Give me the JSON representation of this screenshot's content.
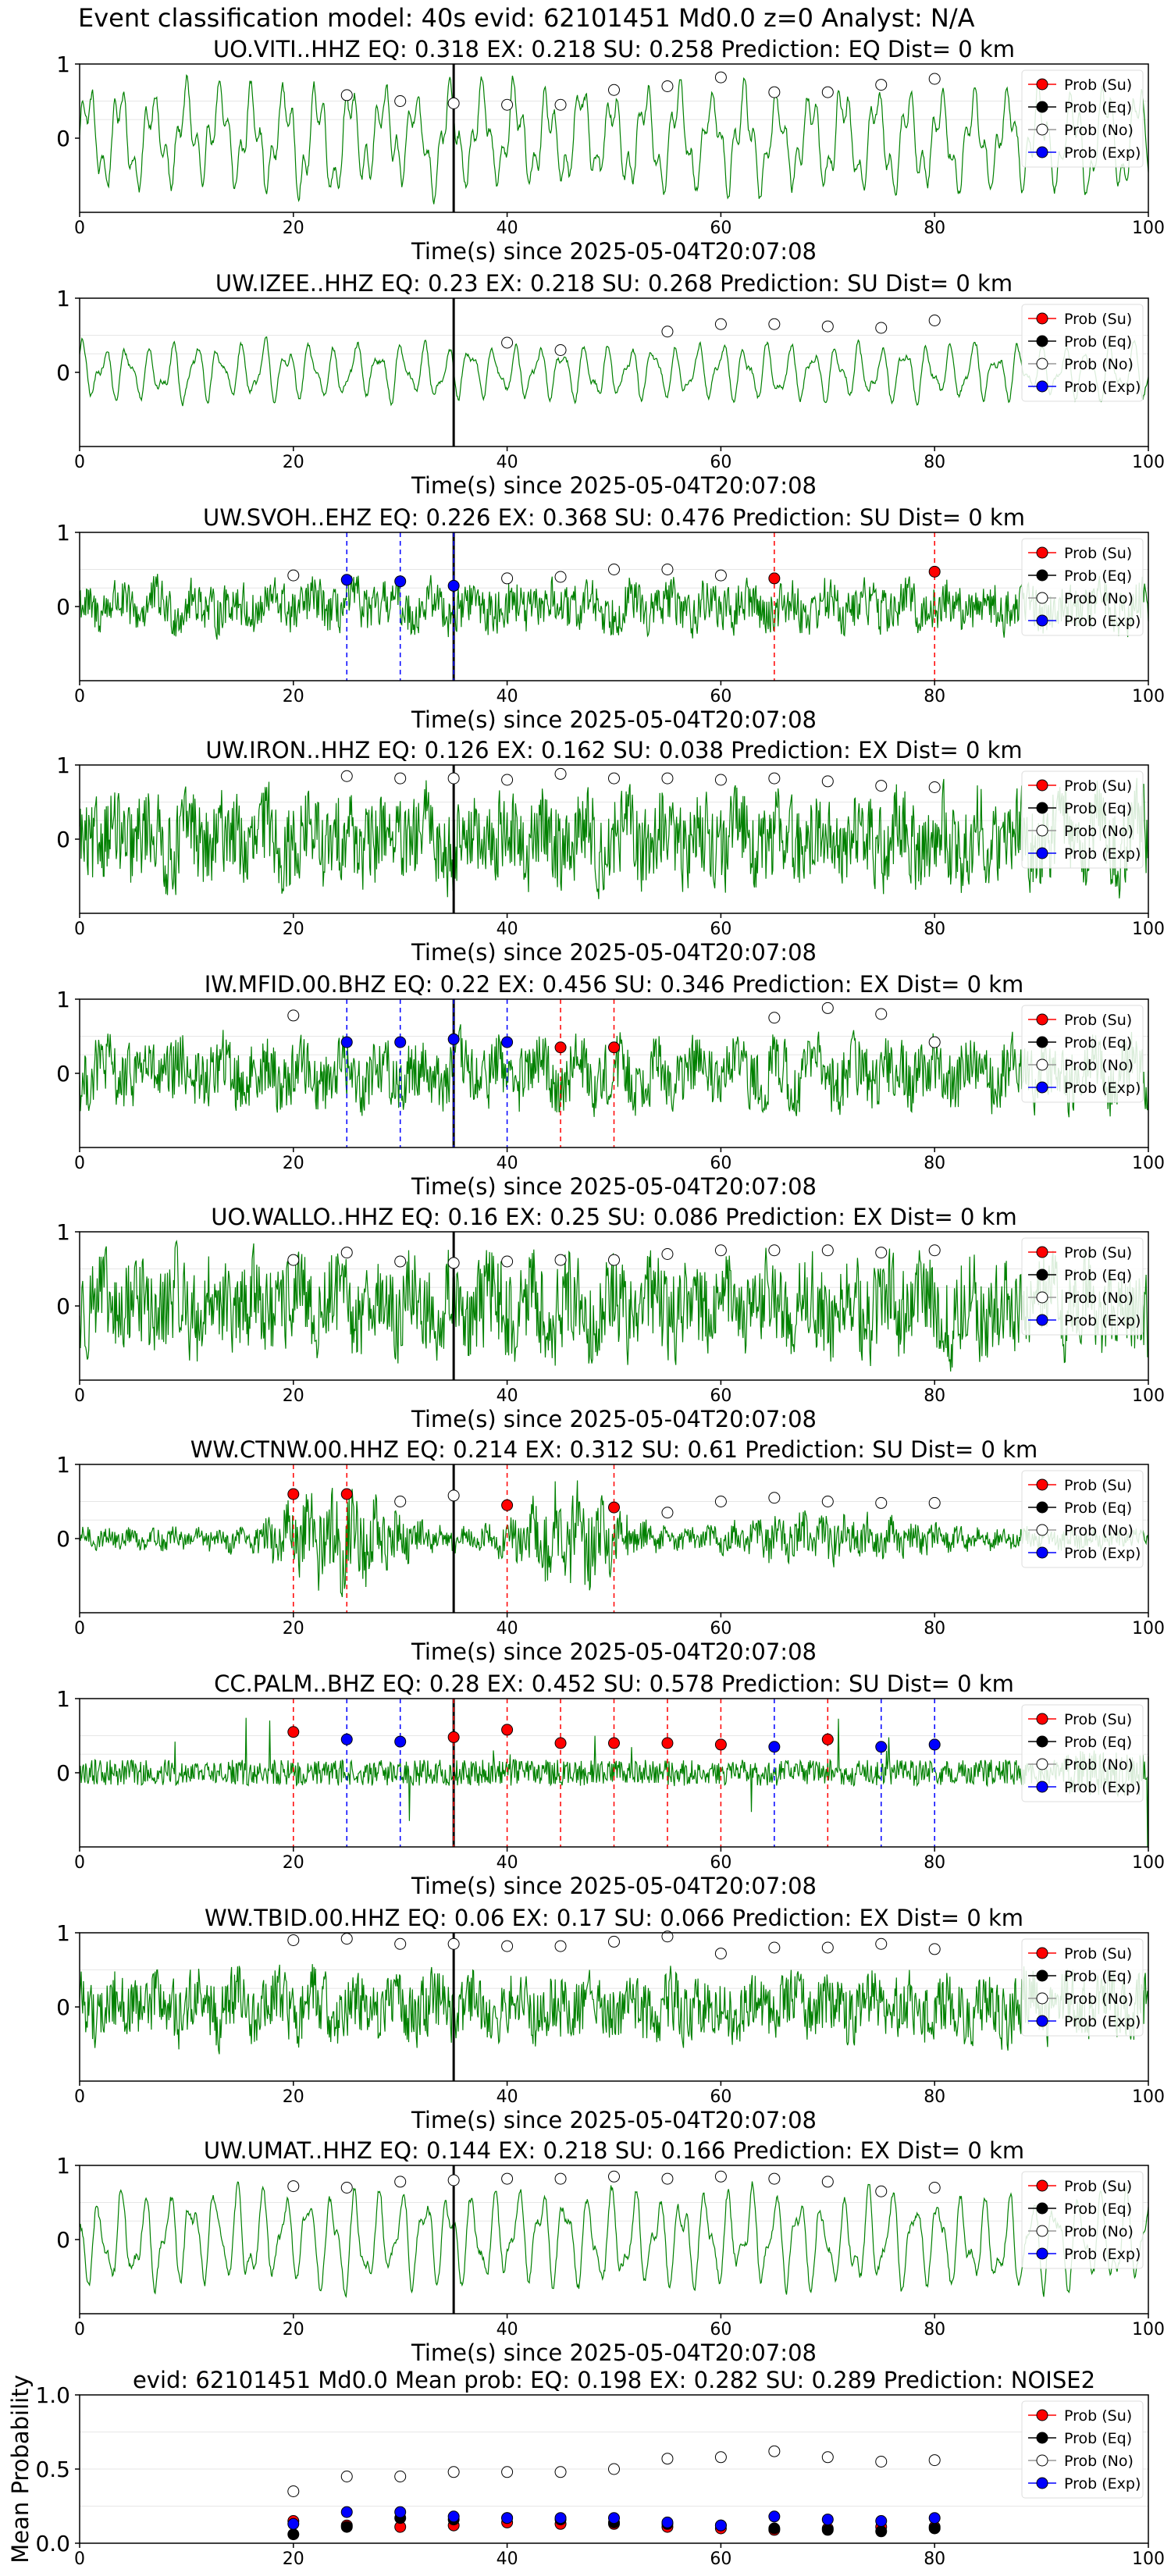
{
  "figure": {
    "title": "Event classification model: 40s evid: 62101451 Md0.0 z=0 Analyst: N/A",
    "xlabel": "Time(s) since 2025-05-04T20:07:08",
    "x_ticks": [
      "0",
      "20",
      "40",
      "60",
      "80",
      "100"
    ],
    "trace_y_ticks": [
      "1",
      "0"
    ],
    "legend": [
      "Prob (Su)",
      "Prob (Eq)",
      "Prob (No)",
      "Prob (Exp)"
    ],
    "colors": {
      "waveform": "#008000",
      "su": "#ff0000",
      "eq": "#000000",
      "no": "#ffffff",
      "exp": "#0000ff",
      "origin_line": "#000000",
      "grid": "#e6e6e6"
    }
  },
  "chart_data": [
    {
      "type": "line",
      "title": "UO.VITI..HHZ   EQ: 0.318  EX: 0.218  SU: 0.258   Prediction: EQ    Dist= 0 km",
      "xlabel": "Time(s) since 2025-05-04T20:07:08",
      "xlim": [
        0,
        100
      ],
      "ylim": [
        -1,
        1
      ],
      "origin_time": 35,
      "waveform_style": "oscillatory",
      "amplitude": 0.85,
      "no_probs": [
        {
          "x": 25,
          "y": 0.58
        },
        {
          "x": 30,
          "y": 0.5
        },
        {
          "x": 35,
          "y": 0.47
        },
        {
          "x": 40,
          "y": 0.45
        },
        {
          "x": 45,
          "y": 0.45
        },
        {
          "x": 50,
          "y": 0.65
        },
        {
          "x": 55,
          "y": 0.7
        },
        {
          "x": 60,
          "y": 0.82
        },
        {
          "x": 65,
          "y": 0.62
        },
        {
          "x": 70,
          "y": 0.62
        },
        {
          "x": 75,
          "y": 0.72
        },
        {
          "x": 80,
          "y": 0.8
        }
      ],
      "su_probs": [],
      "exp_probs": []
    },
    {
      "type": "line",
      "title": "UW.IZEE..HHZ   EQ: 0.23  EX: 0.218  SU: 0.268   Prediction: SU    Dist= 0 km",
      "xlabel": "Time(s) since 2025-05-04T20:07:08",
      "xlim": [
        0,
        100
      ],
      "ylim": [
        -1,
        1
      ],
      "origin_time": 35,
      "waveform_style": "oscillatory",
      "amplitude": 0.45,
      "no_probs": [
        {
          "x": 40,
          "y": 0.4
        },
        {
          "x": 45,
          "y": 0.3
        },
        {
          "x": 55,
          "y": 0.55
        },
        {
          "x": 60,
          "y": 0.65
        },
        {
          "x": 65,
          "y": 0.65
        },
        {
          "x": 70,
          "y": 0.62
        },
        {
          "x": 75,
          "y": 0.6
        },
        {
          "x": 80,
          "y": 0.7
        }
      ],
      "su_probs": [],
      "exp_probs": []
    },
    {
      "type": "line",
      "title": "UW.SVOH..EHZ   EQ: 0.226  EX: 0.368  SU: 0.476   Prediction: SU    Dist= 0 km",
      "xlabel": "Time(s) since 2025-05-04T20:07:08",
      "xlim": [
        0,
        100
      ],
      "ylim": [
        -1,
        1
      ],
      "origin_time": 35,
      "waveform_style": "noisy",
      "amplitude": 0.4,
      "no_probs": [
        {
          "x": 20,
          "y": 0.42
        },
        {
          "x": 40,
          "y": 0.38
        },
        {
          "x": 45,
          "y": 0.4
        },
        {
          "x": 50,
          "y": 0.5
        },
        {
          "x": 55,
          "y": 0.5
        },
        {
          "x": 60,
          "y": 0.42
        }
      ],
      "su_probs": [
        {
          "x": 65,
          "y": 0.38
        },
        {
          "x": 80,
          "y": 0.47
        }
      ],
      "exp_probs": [
        {
          "x": 25,
          "y": 0.36
        },
        {
          "x": 30,
          "y": 0.34
        },
        {
          "x": 35,
          "y": 0.28
        }
      ]
    },
    {
      "type": "line",
      "title": "UW.IRON..HHZ   EQ: 0.126  EX: 0.162  SU: 0.038   Prediction: EX    Dist= 0 km",
      "xlabel": "Time(s) since 2025-05-04T20:07:08",
      "xlim": [
        0,
        100
      ],
      "ylim": [
        -1,
        1
      ],
      "origin_time": 35,
      "waveform_style": "noisy",
      "amplitude": 0.75,
      "no_probs": [
        {
          "x": 25,
          "y": 0.85
        },
        {
          "x": 30,
          "y": 0.82
        },
        {
          "x": 35,
          "y": 0.82
        },
        {
          "x": 40,
          "y": 0.8
        },
        {
          "x": 45,
          "y": 0.88
        },
        {
          "x": 50,
          "y": 0.82
        },
        {
          "x": 55,
          "y": 0.82
        },
        {
          "x": 60,
          "y": 0.8
        },
        {
          "x": 65,
          "y": 0.82
        },
        {
          "x": 70,
          "y": 0.78
        },
        {
          "x": 75,
          "y": 0.72
        },
        {
          "x": 80,
          "y": 0.7
        }
      ],
      "su_probs": [],
      "exp_probs": []
    },
    {
      "type": "line",
      "title": "IW.MFID.00.BHZ   EQ: 0.22  EX: 0.456  SU: 0.346   Prediction: EX    Dist= 0 km",
      "xlabel": "Time(s) since 2025-05-04T20:07:08",
      "xlim": [
        0,
        100
      ],
      "ylim": [
        -1,
        1
      ],
      "origin_time": 35,
      "waveform_style": "noisy",
      "amplitude": 0.55,
      "no_probs": [
        {
          "x": 20,
          "y": 0.78
        },
        {
          "x": 65,
          "y": 0.75
        },
        {
          "x": 70,
          "y": 0.88
        },
        {
          "x": 75,
          "y": 0.8
        },
        {
          "x": 80,
          "y": 0.42
        }
      ],
      "su_probs": [
        {
          "x": 45,
          "y": 0.35
        },
        {
          "x": 50,
          "y": 0.35
        }
      ],
      "exp_probs": [
        {
          "x": 25,
          "y": 0.42
        },
        {
          "x": 30,
          "y": 0.42
        },
        {
          "x": 35,
          "y": 0.46
        },
        {
          "x": 40,
          "y": 0.42
        }
      ]
    },
    {
      "type": "line",
      "title": "UO.WALLO..HHZ   EQ: 0.16  EX: 0.25  SU: 0.086   Prediction: EX    Dist= 0 km",
      "xlabel": "Time(s) since 2025-05-04T20:07:08",
      "xlim": [
        0,
        100
      ],
      "ylim": [
        -1,
        1
      ],
      "origin_time": 35,
      "waveform_style": "noisy",
      "amplitude": 0.8,
      "no_probs": [
        {
          "x": 20,
          "y": 0.62
        },
        {
          "x": 25,
          "y": 0.72
        },
        {
          "x": 30,
          "y": 0.6
        },
        {
          "x": 35,
          "y": 0.58
        },
        {
          "x": 40,
          "y": 0.6
        },
        {
          "x": 45,
          "y": 0.62
        },
        {
          "x": 50,
          "y": 0.62
        },
        {
          "x": 55,
          "y": 0.7
        },
        {
          "x": 60,
          "y": 0.75
        },
        {
          "x": 65,
          "y": 0.75
        },
        {
          "x": 70,
          "y": 0.75
        },
        {
          "x": 75,
          "y": 0.72
        },
        {
          "x": 80,
          "y": 0.75
        }
      ],
      "su_probs": [],
      "exp_probs": []
    },
    {
      "type": "line",
      "title": "WW.CTNW.00.HHZ   EQ: 0.214  EX: 0.312  SU: 0.61   Prediction: SU    Dist= 0 km",
      "xlabel": "Time(s) since 2025-05-04T20:07:08",
      "xlim": [
        0,
        100
      ],
      "ylim": [
        -1,
        1
      ],
      "origin_time": 35,
      "waveform_style": "bursts",
      "amplitude": 0.7,
      "no_probs": [
        {
          "x": 30,
          "y": 0.5
        },
        {
          "x": 35,
          "y": 0.58
        },
        {
          "x": 55,
          "y": 0.35
        },
        {
          "x": 60,
          "y": 0.5
        },
        {
          "x": 65,
          "y": 0.55
        },
        {
          "x": 70,
          "y": 0.5
        },
        {
          "x": 75,
          "y": 0.48
        },
        {
          "x": 80,
          "y": 0.48
        }
      ],
      "su_probs": [
        {
          "x": 20,
          "y": 0.6
        },
        {
          "x": 25,
          "y": 0.6
        },
        {
          "x": 40,
          "y": 0.45
        },
        {
          "x": 50,
          "y": 0.42
        }
      ],
      "exp_probs": []
    },
    {
      "type": "line",
      "title": "CC.PALM..BHZ   EQ: 0.28  EX: 0.452  SU: 0.578   Prediction: SU    Dist= 0 km",
      "xlabel": "Time(s) since 2025-05-04T20:07:08",
      "xlim": [
        0,
        100
      ],
      "ylim": [
        -1,
        1
      ],
      "origin_time": 35,
      "waveform_style": "spiky",
      "amplitude": 0.5,
      "no_probs": [],
      "su_probs": [
        {
          "x": 20,
          "y": 0.55
        },
        {
          "x": 35,
          "y": 0.48
        },
        {
          "x": 40,
          "y": 0.58
        },
        {
          "x": 45,
          "y": 0.4
        },
        {
          "x": 50,
          "y": 0.4
        },
        {
          "x": 55,
          "y": 0.4
        },
        {
          "x": 60,
          "y": 0.38
        },
        {
          "x": 70,
          "y": 0.45
        }
      ],
      "exp_probs": [
        {
          "x": 25,
          "y": 0.45
        },
        {
          "x": 30,
          "y": 0.42
        },
        {
          "x": 65,
          "y": 0.35
        },
        {
          "x": 75,
          "y": 0.35
        },
        {
          "x": 80,
          "y": 0.38
        }
      ]
    },
    {
      "type": "line",
      "title": "WW.TBID.00.HHZ   EQ: 0.06  EX: 0.17  SU: 0.066   Prediction: EX    Dist= 0 km",
      "xlabel": "Time(s) since 2025-05-04T20:07:08",
      "xlim": [
        0,
        100
      ],
      "ylim": [
        -1,
        1
      ],
      "origin_time": 35,
      "waveform_style": "noisy",
      "amplitude": 0.55,
      "no_probs": [
        {
          "x": 20,
          "y": 0.9
        },
        {
          "x": 25,
          "y": 0.92
        },
        {
          "x": 30,
          "y": 0.85
        },
        {
          "x": 35,
          "y": 0.85
        },
        {
          "x": 40,
          "y": 0.82
        },
        {
          "x": 45,
          "y": 0.82
        },
        {
          "x": 50,
          "y": 0.88
        },
        {
          "x": 55,
          "y": 0.95
        },
        {
          "x": 60,
          "y": 0.72
        },
        {
          "x": 65,
          "y": 0.8
        },
        {
          "x": 70,
          "y": 0.8
        },
        {
          "x": 75,
          "y": 0.85
        },
        {
          "x": 80,
          "y": 0.78
        }
      ],
      "su_probs": [],
      "exp_probs": []
    },
    {
      "type": "line",
      "title": "UW.UMAT..HHZ   EQ: 0.144  EX: 0.218  SU: 0.166   Prediction: EX    Dist= 0 km",
      "xlabel": "Time(s) since 2025-05-04T20:07:08",
      "xlim": [
        0,
        100
      ],
      "ylim": [
        -1,
        1
      ],
      "origin_time": 35,
      "waveform_style": "oscillatory",
      "amplitude": 0.75,
      "no_probs": [
        {
          "x": 20,
          "y": 0.72
        },
        {
          "x": 25,
          "y": 0.7
        },
        {
          "x": 30,
          "y": 0.78
        },
        {
          "x": 35,
          "y": 0.8
        },
        {
          "x": 40,
          "y": 0.82
        },
        {
          "x": 45,
          "y": 0.82
        },
        {
          "x": 50,
          "y": 0.85
        },
        {
          "x": 55,
          "y": 0.82
        },
        {
          "x": 60,
          "y": 0.85
        },
        {
          "x": 65,
          "y": 0.82
        },
        {
          "x": 70,
          "y": 0.78
        },
        {
          "x": 75,
          "y": 0.65
        },
        {
          "x": 80,
          "y": 0.7
        }
      ],
      "su_probs": [],
      "exp_probs": []
    },
    {
      "type": "scatter",
      "title": "evid: 62101451  Md0.0   Mean prob:   EQ: 0.198  EX: 0.282  SU: 0.289   Prediction: NOISE2",
      "ylabel": "Mean Probability",
      "xlim": [
        0,
        100
      ],
      "ylim": [
        0,
        1
      ],
      "x_ticks": [
        "0",
        "20",
        "40",
        "60",
        "80",
        "100"
      ],
      "y_ticks": [
        "0.0",
        "0.5",
        "1.0"
      ],
      "x": [
        20,
        25,
        30,
        35,
        40,
        45,
        50,
        55,
        60,
        65,
        70,
        75,
        80
      ],
      "series": [
        {
          "name": "Prob (Su)",
          "values": [
            0.15,
            0.12,
            0.11,
            0.12,
            0.14,
            0.13,
            0.13,
            0.11,
            0.1,
            0.09,
            0.1,
            0.11,
            0.11
          ]
        },
        {
          "name": "Prob (Eq)",
          "values": [
            0.06,
            0.11,
            0.17,
            0.16,
            0.17,
            0.16,
            0.14,
            0.13,
            0.12,
            0.1,
            0.09,
            0.08,
            0.1
          ]
        },
        {
          "name": "Prob (No)",
          "values": [
            0.35,
            0.45,
            0.45,
            0.48,
            0.48,
            0.48,
            0.5,
            0.57,
            0.58,
            0.62,
            0.58,
            0.55,
            0.56
          ]
        },
        {
          "name": "Prob (Exp)",
          "values": [
            0.13,
            0.21,
            0.21,
            0.18,
            0.17,
            0.17,
            0.17,
            0.14,
            0.12,
            0.18,
            0.16,
            0.15,
            0.17
          ]
        }
      ]
    }
  ]
}
